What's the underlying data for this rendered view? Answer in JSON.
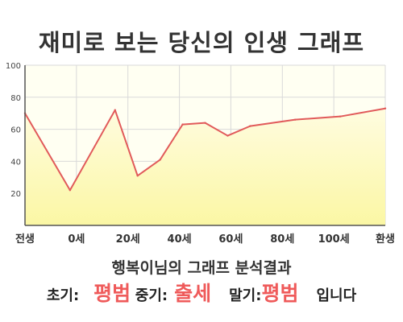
{
  "title": "재미로 보는 당신의 인생 그래프",
  "chart_data": {
    "type": "area",
    "categories": [
      "전생",
      "0세",
      "20세",
      "40세",
      "60세",
      "80세",
      "100세",
      "환생"
    ],
    "series": [
      {
        "x": [
          0,
          10,
          20,
          25,
          30,
          35,
          40,
          45,
          50,
          60,
          70,
          80
        ],
        "values": [
          70,
          22,
          72,
          31,
          41,
          63,
          64,
          56,
          62,
          66,
          68,
          73
        ]
      }
    ],
    "yticks": [
      20,
      40,
      60,
      80,
      100
    ],
    "ylim": [
      0,
      100
    ],
    "grid": true,
    "colors": {
      "line": "#e15a5a",
      "fill_top": "#fffce0",
      "fill_bottom": "#fbf7a4",
      "plot_bg": "#fffff2",
      "grid": "#d9d9d9"
    }
  },
  "summary": "행복이님의 그래프 분석결과",
  "result": {
    "early_label": "초기:",
    "early_value": "평범",
    "middle_label": "중기:",
    "middle_value": "출세",
    "late_label": "말기:",
    "late_value": "평범",
    "ending": "입니다"
  }
}
